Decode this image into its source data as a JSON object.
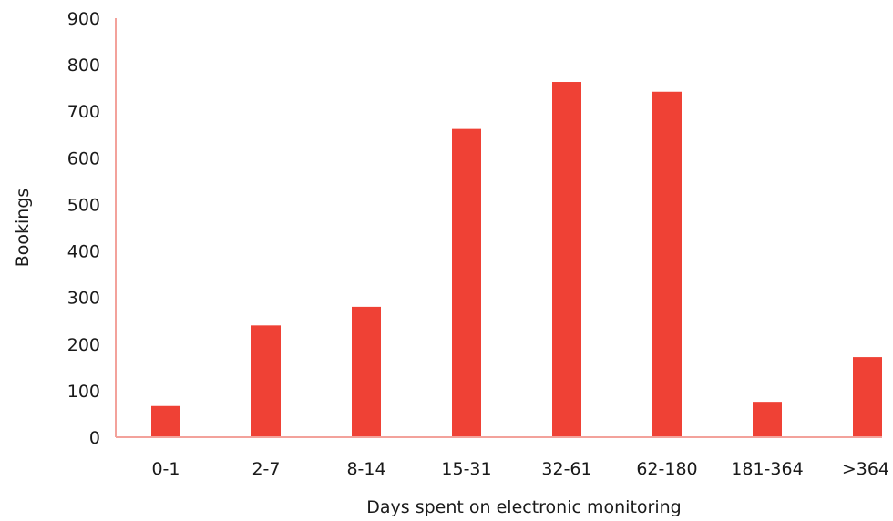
{
  "chart_data": {
    "type": "bar",
    "xlabel": "Days spent on electronic monitoring",
    "ylabel": "Bookings",
    "categories": [
      "0-1",
      "2-7",
      "8-14",
      "15-31",
      "32-61",
      "62-180",
      "181-364",
      ">364"
    ],
    "values": [
      67,
      240,
      280,
      662,
      763,
      742,
      76,
      172
    ],
    "ylim": [
      0,
      900
    ],
    "yticks": [
      0,
      100,
      200,
      300,
      400,
      500,
      600,
      700,
      800,
      900
    ],
    "grid": false,
    "legend": "none",
    "colors": {
      "bar": "#ef4135",
      "axis": "#f3a29b",
      "text": "#1a1a1a"
    }
  }
}
